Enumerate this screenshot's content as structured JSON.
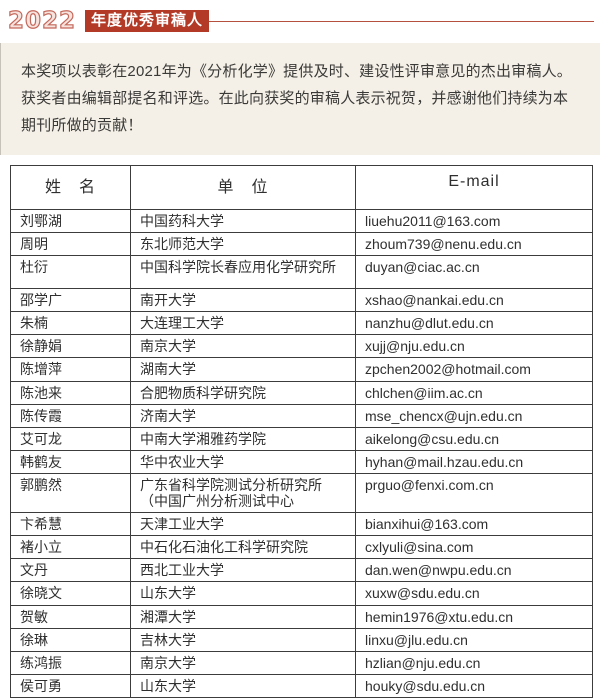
{
  "header": {
    "year": "2022",
    "badge": "年度优秀审稿人",
    "accent_color": "#b23a27"
  },
  "intro": {
    "text": "本奖项以表彰在2021年为《分析化学》提供及时、建设性评审意见的杰出审稿人。获奖者由编辑部提名和评选。在此向获奖的审稿人表示祝贺，并感谢他们持续为本期刊所做的贡献！",
    "background_color": "#f5f0e7"
  },
  "table": {
    "columns": [
      "姓　名",
      "单　位",
      "E-mail"
    ],
    "rows": [
      {
        "name": "刘鄂湖",
        "org": "中国药科大学",
        "email": "liuehu2011@163.com"
      },
      {
        "name": "周明",
        "org": "东北师范大学",
        "email": "zhoum739@nenu.edu.cn"
      },
      {
        "name": "杜衍",
        "org": "中国科学院长春应用化学研究所",
        "email": "duyan@ciac.ac.cn"
      },
      {
        "name": "邵学广",
        "org": "南开大学",
        "email": "xshao@nankai.edu.cn"
      },
      {
        "name": "朱楠",
        "org": "大连理工大学",
        "email": "nanzhu@dlut.edu.cn"
      },
      {
        "name": "徐静娟",
        "org": "南京大学",
        "email": "xujj@nju.edu.cn"
      },
      {
        "name": "陈增萍",
        "org": "湖南大学",
        "email": "zpchen2002@hotmail.com"
      },
      {
        "name": "陈池来",
        "org": "合肥物质科学研究院",
        "email": "chlchen@iim.ac.cn"
      },
      {
        "name": "陈传霞",
        "org": "济南大学",
        "email": "mse_chencx@ujn.edu.cn"
      },
      {
        "name": "艾可龙",
        "org": "中南大学湘雅药学院",
        "email": "aikelong@csu.edu.cn"
      },
      {
        "name": "韩鹤友",
        "org": "华中农业大学",
        "email": "hyhan@mail.hzau.edu.cn"
      },
      {
        "name": "郭鹏然",
        "org": "广东省科学院测试分析研究所（中国广州分析测试中心",
        "email": "prguo@fenxi.com.cn"
      },
      {
        "name": "卞希慧",
        "org": "天津工业大学",
        "email": "bianxihui@163.com"
      },
      {
        "name": "褚小立",
        "org": "中石化石油化工科学研究院",
        "email": "cxlyuli@sina.com"
      },
      {
        "name": "文丹",
        "org": "西北工业大学",
        "email": "dan.wen@nwpu.edu.cn"
      },
      {
        "name": "徐晓文",
        "org": "山东大学",
        "email": "xuxw@sdu.edu.cn"
      },
      {
        "name": "贺敏",
        "org": "湘潭大学",
        "email": "hemin1976@xtu.edu.cn"
      },
      {
        "name": "徐琳",
        "org": "吉林大学",
        "email": "linxu@jlu.edu.cn"
      },
      {
        "name": "练鸿振",
        "org": "南京大学",
        "email": "hzlian@nju.edu.cn"
      },
      {
        "name": "侯可勇",
        "org": "山东大学",
        "email": "houky@sdu.edu.cn"
      }
    ]
  }
}
